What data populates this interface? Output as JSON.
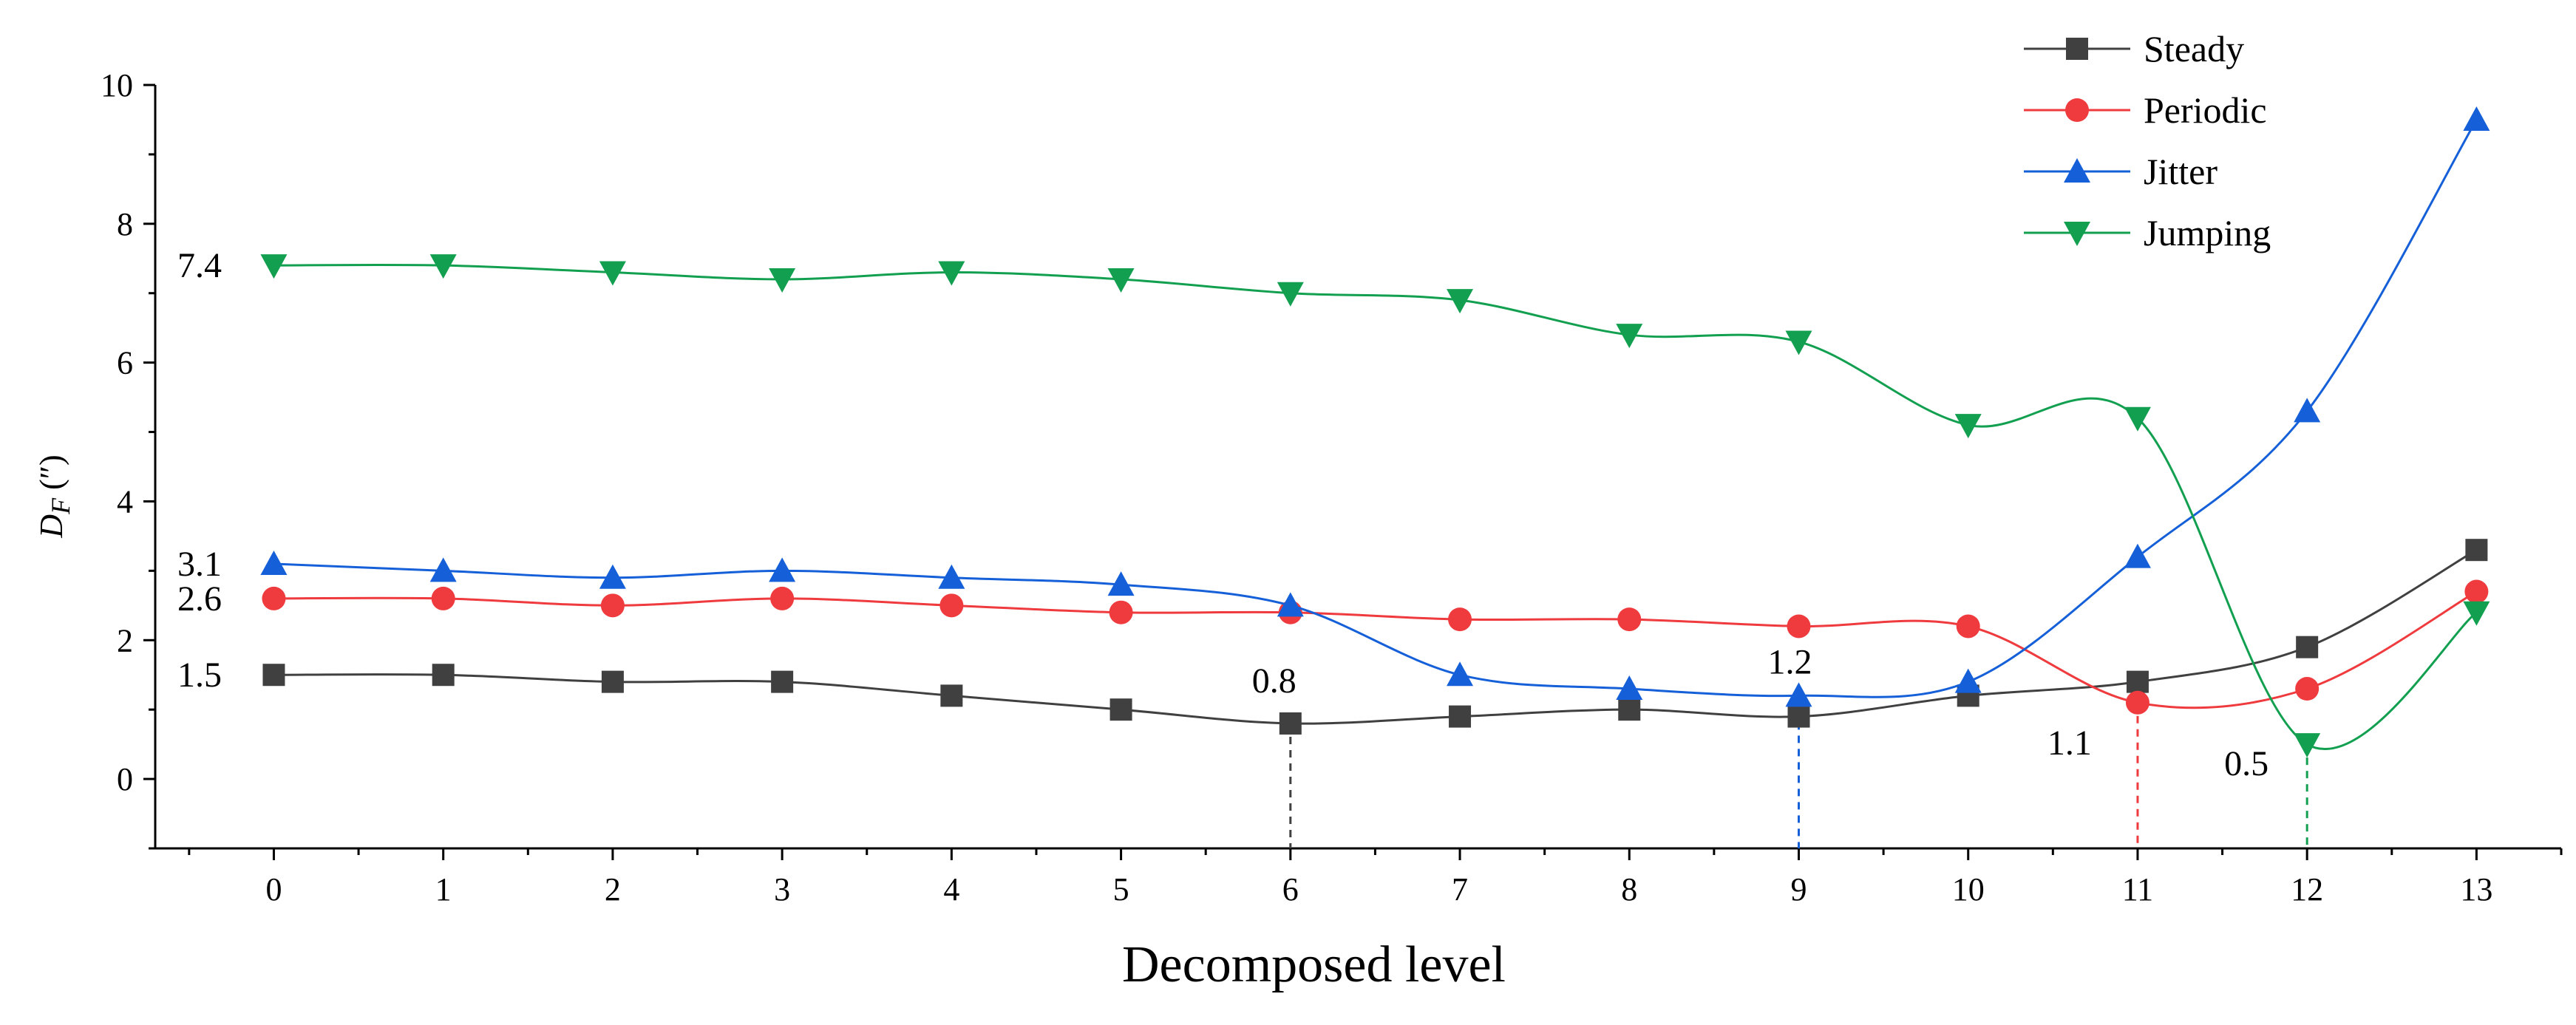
{
  "chart_data": {
    "type": "line",
    "title": "",
    "xlabel": "Decomposed level",
    "ylabel_main": "D",
    "ylabel_sub": "F",
    "ylabel_unit": " (″)",
    "xlim": [
      -0.7,
      13.5
    ],
    "ylim": [
      -1,
      10
    ],
    "x": [
      0,
      1,
      2,
      3,
      4,
      5,
      6,
      7,
      8,
      9,
      10,
      11,
      12,
      13
    ],
    "x_tick_labels": [
      "0",
      "1",
      "2",
      "3",
      "4",
      "5",
      "6",
      "7",
      "8",
      "9",
      "10",
      "11",
      "12",
      "13"
    ],
    "y_ticks": [
      0,
      2,
      4,
      6,
      8,
      10
    ],
    "y_tick_labels": [
      "0",
      "2",
      "4",
      "6",
      "8",
      "10"
    ],
    "series": [
      {
        "name": "Steady",
        "color": "#404040",
        "marker": "square",
        "values": [
          1.5,
          1.5,
          1.4,
          1.4,
          1.2,
          1.0,
          0.8,
          0.9,
          1.0,
          0.9,
          1.2,
          1.4,
          1.9,
          3.3
        ]
      },
      {
        "name": "Periodic",
        "color": "#ef3a3e",
        "marker": "circle",
        "values": [
          2.6,
          2.6,
          2.5,
          2.6,
          2.5,
          2.4,
          2.4,
          2.3,
          2.3,
          2.2,
          2.2,
          1.1,
          1.3,
          2.7
        ]
      },
      {
        "name": "Jitter",
        "color": "#1560d8",
        "marker": "triangle-up",
        "values": [
          3.1,
          3.0,
          2.9,
          3.0,
          2.9,
          2.8,
          2.5,
          1.5,
          1.3,
          1.2,
          1.4,
          3.2,
          5.3,
          9.5
        ]
      },
      {
        "name": "Jumping",
        "color": "#12a050",
        "marker": "triangle-down",
        "values": [
          7.4,
          7.4,
          7.3,
          7.2,
          7.3,
          7.2,
          7.0,
          6.9,
          6.4,
          6.3,
          5.1,
          5.2,
          0.5,
          2.4
        ]
      }
    ],
    "left_labels": [
      {
        "text": "7.4",
        "y": 7.4
      },
      {
        "text": "3.1",
        "y": 3.1
      },
      {
        "text": "2.6",
        "y": 2.6
      },
      {
        "text": "1.5",
        "y": 1.5
      }
    ],
    "min_annotations": [
      {
        "text": "0.8",
        "x": 6,
        "y": 0.8,
        "color": "#404040"
      },
      {
        "text": "1.2",
        "x": 9,
        "y": 1.2,
        "color": "#1560d8"
      },
      {
        "text": "1.1",
        "x": 11,
        "y": 1.1,
        "color": "#ef3a3e"
      },
      {
        "text": "0.5",
        "x": 12,
        "y": 0.5,
        "color": "#12a050"
      }
    ],
    "legend_position": "top-right"
  }
}
